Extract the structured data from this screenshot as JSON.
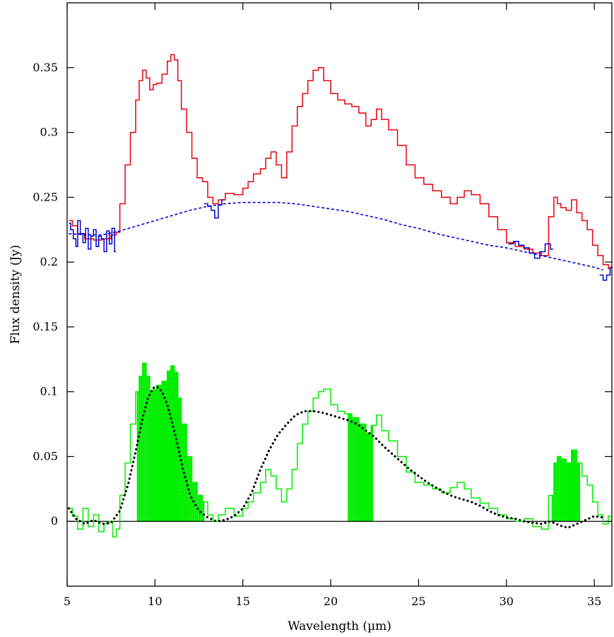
{
  "chart_data": {
    "type": "line",
    "xlabel": "Wavelength (µm)",
    "ylabel": "Flux density (Jy)",
    "xlim": [
      5,
      36
    ],
    "ylim": [
      -0.05,
      0.4
    ],
    "x_ticks": [
      5,
      10,
      15,
      20,
      25,
      30,
      35
    ],
    "y_ticks": [
      0,
      0.05,
      0.1,
      0.15,
      0.2,
      0.25,
      0.3,
      0.35
    ],
    "x_tick_labels": [
      "5",
      "10",
      "15",
      "20",
      "25",
      "30",
      "35"
    ],
    "y_tick_labels": [
      "0",
      "0.05",
      "0.1",
      "0.15",
      "0.2",
      "0.25",
      "0.3",
      "0.35"
    ],
    "grid": false,
    "legend": "none",
    "colors": {
      "observed": "#e8000b",
      "continuum_regions": "#0000cc",
      "continuum_fit": "#0000dd",
      "residual": "#00ee00",
      "model": "#000000",
      "zero_line": "#000000"
    },
    "series": [
      {
        "style": "step",
        "color": "#e8000b",
        "x": [
          5.1,
          5.3,
          5.6,
          6.0,
          6.5,
          7.0,
          7.5,
          7.8,
          8.0,
          8.3,
          8.6,
          8.9,
          9.1,
          9.3,
          9.5,
          9.7,
          9.9,
          10.1,
          10.4,
          10.7,
          10.9,
          11.1,
          11.3,
          11.5,
          11.8,
          12.1,
          12.4,
          12.7,
          13.0,
          13.3,
          13.6,
          14.0,
          14.5,
          15.0,
          15.3,
          15.6,
          16.0,
          16.3,
          16.6,
          16.9,
          17.2,
          17.5,
          17.8,
          18.1,
          18.4,
          18.7,
          19.0,
          19.3,
          19.6,
          20.0,
          20.4,
          20.8,
          21.2,
          21.6,
          22.0,
          22.3,
          22.6,
          22.9,
          23.3,
          23.8,
          24.3,
          24.8,
          25.3,
          25.8,
          26.3,
          26.8,
          27.2,
          27.6,
          28.0,
          28.5,
          29.0,
          29.5,
          30.0,
          30.5,
          31.0,
          31.5,
          32.0,
          32.4,
          32.7,
          32.9,
          33.1,
          33.4,
          33.7,
          34.0,
          34.3,
          34.6,
          34.9,
          35.2,
          35.5,
          35.8
        ],
        "y": [
          0.232,
          0.228,
          0.222,
          0.218,
          0.217,
          0.218,
          0.221,
          0.223,
          0.245,
          0.275,
          0.3,
          0.325,
          0.34,
          0.348,
          0.342,
          0.333,
          0.337,
          0.338,
          0.345,
          0.355,
          0.36,
          0.356,
          0.34,
          0.318,
          0.3,
          0.28,
          0.265,
          0.262,
          0.25,
          0.245,
          0.248,
          0.253,
          0.252,
          0.257,
          0.262,
          0.268,
          0.272,
          0.28,
          0.285,
          0.275,
          0.265,
          0.285,
          0.305,
          0.32,
          0.33,
          0.34,
          0.348,
          0.35,
          0.34,
          0.33,
          0.325,
          0.322,
          0.32,
          0.315,
          0.305,
          0.31,
          0.318,
          0.31,
          0.302,
          0.29,
          0.275,
          0.265,
          0.26,
          0.255,
          0.25,
          0.245,
          0.25,
          0.255,
          0.252,
          0.245,
          0.235,
          0.225,
          0.215,
          0.212,
          0.21,
          0.207,
          0.205,
          0.235,
          0.25,
          0.245,
          0.242,
          0.24,
          0.248,
          0.238,
          0.232,
          0.225,
          0.213,
          0.205,
          0.198,
          0.195
        ]
      },
      {
        "style": "step",
        "color": "#0000cc",
        "x": [
          5.1,
          5.2,
          5.35,
          5.5,
          5.6,
          5.75,
          5.9,
          6.05,
          6.2,
          6.35,
          6.5,
          6.65,
          6.8,
          6.95,
          7.1,
          7.25,
          7.4,
          7.55,
          7.7
        ],
        "y": [
          0.23,
          0.225,
          0.218,
          0.212,
          0.232,
          0.222,
          0.215,
          0.226,
          0.21,
          0.22,
          0.225,
          0.212,
          0.22,
          0.218,
          0.208,
          0.224,
          0.214,
          0.226,
          0.208
        ]
      },
      {
        "style": "step",
        "color": "#0000cc",
        "x": [
          12.8,
          13.0,
          13.2,
          13.4,
          13.6,
          13.8
        ],
        "y": [
          0.245,
          0.243,
          0.24,
          0.234,
          0.244,
          0.248
        ]
      },
      {
        "style": "step",
        "color": "#0000cc",
        "x": [
          30.1,
          30.4,
          30.7,
          31.0,
          31.3,
          31.6,
          31.9,
          32.2,
          32.5
        ],
        "y": [
          0.214,
          0.216,
          0.213,
          0.211,
          0.207,
          0.203,
          0.208,
          0.214,
          0.21
        ]
      },
      {
        "style": "step",
        "color": "#0000cc",
        "x": [
          35.3,
          35.5,
          35.7,
          35.9
        ],
        "y": [
          0.19,
          0.186,
          0.19,
          0.196
        ]
      },
      {
        "style": "dashed",
        "color": "#0000dd",
        "x": [
          5.1,
          6,
          7,
          8,
          9,
          10,
          11,
          12,
          13,
          14,
          15,
          16,
          17,
          18,
          19,
          20,
          21,
          22,
          23,
          24,
          25,
          26,
          27,
          28,
          29,
          30,
          31,
          32,
          33,
          34,
          35,
          35.5
        ],
        "y": [
          0.222,
          0.221,
          0.221,
          0.224,
          0.228,
          0.232,
          0.236,
          0.24,
          0.243,
          0.245,
          0.246,
          0.246,
          0.246,
          0.245,
          0.243,
          0.241,
          0.239,
          0.236,
          0.233,
          0.229,
          0.226,
          0.222,
          0.219,
          0.216,
          0.213,
          0.211,
          0.208,
          0.205,
          0.202,
          0.199,
          0.196,
          0.194
        ]
      },
      {
        "style": "step",
        "color": "#00ee00",
        "x": [
          5.1,
          5.3,
          5.6,
          5.9,
          6.2,
          6.5,
          6.8,
          7.1,
          7.4,
          7.6,
          7.8,
          8.0,
          8.3,
          8.6,
          8.9,
          9.1,
          9.3,
          9.5,
          9.7,
          9.9,
          10.1,
          10.4,
          10.7,
          10.9,
          11.1,
          11.3,
          11.5,
          11.8,
          12.1,
          12.4,
          12.7,
          13.0,
          13.3,
          13.6,
          14.0,
          14.5,
          15.0,
          15.3,
          15.6,
          16.0,
          16.3,
          16.6,
          16.9,
          17.2,
          17.5,
          17.8,
          18.1,
          18.4,
          18.7,
          19.0,
          19.3,
          19.6,
          20.0,
          20.4,
          20.8,
          21.2,
          21.6,
          22.0,
          22.3,
          22.6,
          22.9,
          23.3,
          23.8,
          24.3,
          24.8,
          25.3,
          25.8,
          26.3,
          26.8,
          27.2,
          27.6,
          28.0,
          28.5,
          29.0,
          29.5,
          30.0,
          30.5,
          31.0,
          31.5,
          32.0,
          32.4,
          32.7,
          32.9,
          33.1,
          33.4,
          33.7,
          34.0,
          34.3,
          34.6,
          34.9,
          35.2,
          35.5,
          35.8
        ],
        "y": [
          0.01,
          0.004,
          -0.006,
          0.01,
          -0.004,
          0.005,
          -0.008,
          -0.002,
          0.0,
          -0.012,
          -0.006,
          0.02,
          0.045,
          0.075,
          0.1,
          0.112,
          0.122,
          0.112,
          0.1,
          0.102,
          0.105,
          0.108,
          0.116,
          0.12,
          0.115,
          0.095,
          0.075,
          0.05,
          0.03,
          0.02,
          0.015,
          0.005,
          0.0,
          0.005,
          0.01,
          0.004,
          0.01,
          0.015,
          0.022,
          0.03,
          0.04,
          0.035,
          0.025,
          0.015,
          0.025,
          0.04,
          0.06,
          0.075,
          0.085,
          0.095,
          0.1,
          0.102,
          0.09,
          0.085,
          0.083,
          0.08,
          0.075,
          0.068,
          0.074,
          0.082,
          0.07,
          0.062,
          0.05,
          0.038,
          0.03,
          0.028,
          0.025,
          0.022,
          0.026,
          0.03,
          0.025,
          0.018,
          0.014,
          0.01,
          0.005,
          0.002,
          0.0,
          0.002,
          -0.004,
          -0.006,
          0.02,
          0.045,
          0.05,
          0.048,
          0.045,
          0.055,
          0.045,
          0.035,
          0.028,
          0.015,
          0.005,
          -0.002,
          0.004
        ]
      },
      {
        "style": "dotted",
        "color": "#000000",
        "x": [
          5.1,
          5.5,
          6,
          6.5,
          7,
          7.5,
          8,
          8.5,
          9,
          9.3,
          9.6,
          9.9,
          10.1,
          10.4,
          10.7,
          11,
          11.3,
          11.6,
          12,
          12.5,
          13,
          13.5,
          14,
          14.5,
          15,
          15.5,
          16,
          16.5,
          17,
          17.5,
          18,
          18.5,
          19,
          19.5,
          20,
          20.5,
          21,
          21.5,
          22,
          22.5,
          23,
          23.5,
          24,
          24.5,
          25,
          25.5,
          26,
          26.5,
          27,
          27.5,
          28,
          28.5,
          29,
          29.5,
          30,
          30.5,
          31,
          31.5,
          32,
          32.5,
          33,
          33.5,
          34,
          34.5,
          35,
          35.5
        ],
        "y": [
          0.01,
          0.002,
          -0.002,
          0.001,
          -0.002,
          -0.001,
          0.008,
          0.03,
          0.06,
          0.08,
          0.095,
          0.103,
          0.104,
          0.1,
          0.09,
          0.075,
          0.058,
          0.04,
          0.02,
          0.008,
          0.003,
          0.0,
          0.001,
          0.004,
          0.01,
          0.022,
          0.04,
          0.055,
          0.067,
          0.075,
          0.082,
          0.085,
          0.085,
          0.084,
          0.082,
          0.08,
          0.078,
          0.075,
          0.07,
          0.065,
          0.058,
          0.052,
          0.046,
          0.04,
          0.035,
          0.03,
          0.026,
          0.022,
          0.019,
          0.017,
          0.015,
          0.012,
          0.008,
          0.005,
          0.003,
          0.002,
          0.0,
          -0.001,
          -0.002,
          0.0,
          -0.003,
          -0.005,
          -0.002,
          0.001,
          0.004,
          0.003
        ]
      }
    ],
    "filled_bands": [
      {
        "color": "#00ee00",
        "x0": 9.0,
        "x1": 12.8
      },
      {
        "color": "#00ee00",
        "x0": 21.0,
        "x1": 22.4
      },
      {
        "color": "#00ee00",
        "x0": 32.6,
        "x1": 34.2
      }
    ]
  }
}
